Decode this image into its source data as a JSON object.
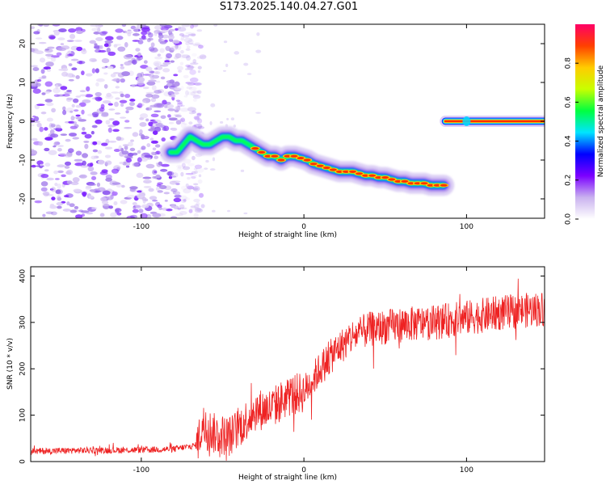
{
  "title": "S173.2025.140.04.27.G01",
  "chart_data": [
    {
      "type": "heatmap",
      "xlabel": "Height of straight line (km)",
      "ylabel": "Frequency (Hz)",
      "xlim": [
        -168,
        148
      ],
      "ylim": [
        -25,
        25
      ],
      "xticks": [
        -100,
        0,
        100
      ],
      "yticks": [
        -20,
        -10,
        0,
        10,
        20
      ],
      "colorbar": {
        "label": "Normalized spectral amplitude",
        "range": [
          0,
          1
        ],
        "ticks": [
          "0.0",
          "0.2",
          "0.4",
          "0.6",
          "0.8"
        ],
        "tick_values": [
          0.0,
          0.2,
          0.4,
          0.6,
          0.8
        ],
        "colors": [
          "#ffffff",
          "#c9b2ef",
          "#7b00ff",
          "#0000ff",
          "#00e5ff",
          "#00ff40",
          "#c8ff00",
          "#ffcc00",
          "#ff4000",
          "#ff0066"
        ]
      },
      "noise_region_x": [
        -168,
        -72
      ],
      "ridge": {
        "x": [
          -82,
          -78,
          -74,
          -70,
          -66,
          -62,
          -58,
          -54,
          -50,
          -46,
          -42,
          -38,
          -34,
          -30,
          -26,
          -22,
          -18,
          -14,
          -10,
          -6,
          -2,
          2,
          6,
          10,
          14,
          18,
          22,
          26,
          30,
          34,
          38,
          42,
          46,
          50,
          54,
          58,
          62,
          66,
          70,
          74,
          78,
          82,
          86
        ],
        "y": [
          -8,
          -8,
          -6,
          -4,
          -5,
          -6,
          -6,
          -5,
          -4,
          -4,
          -5,
          -5,
          -6,
          -7,
          -8,
          -9,
          -9,
          -10,
          -9,
          -9,
          -9.5,
          -10,
          -11,
          -11.5,
          -12,
          -12.5,
          -13,
          -13,
          -13,
          -13.5,
          -14,
          -14,
          -14.5,
          -14.5,
          -15,
          -15.5,
          -15.5,
          -16,
          -16,
          -16,
          -16.5,
          -16.5,
          -16.5
        ]
      },
      "tone": {
        "x": [
          87,
          148
        ],
        "y": 0
      }
    },
    {
      "type": "line",
      "xlabel": "Height of straight line (km)",
      "ylabel": "SNR (10 * v/v)",
      "xlim": [
        -168,
        148
      ],
      "ylim": [
        0,
        420
      ],
      "xticks": [
        -100,
        0,
        100
      ],
      "yticks": [
        0,
        100,
        200,
        300,
        400
      ],
      "color": "#ee2222",
      "trend": {
        "x": [
          -168,
          -140,
          -100,
          -80,
          -66,
          -62,
          -55,
          -45,
          -30,
          -20,
          -10,
          0,
          10,
          20,
          30,
          40,
          60,
          80,
          100,
          120,
          148
        ],
        "y": [
          22,
          24,
          25,
          27,
          35,
          80,
          60,
          55,
          110,
          115,
          140,
          150,
          200,
          240,
          270,
          285,
          295,
          300,
          310,
          320,
          330
        ]
      }
    }
  ]
}
